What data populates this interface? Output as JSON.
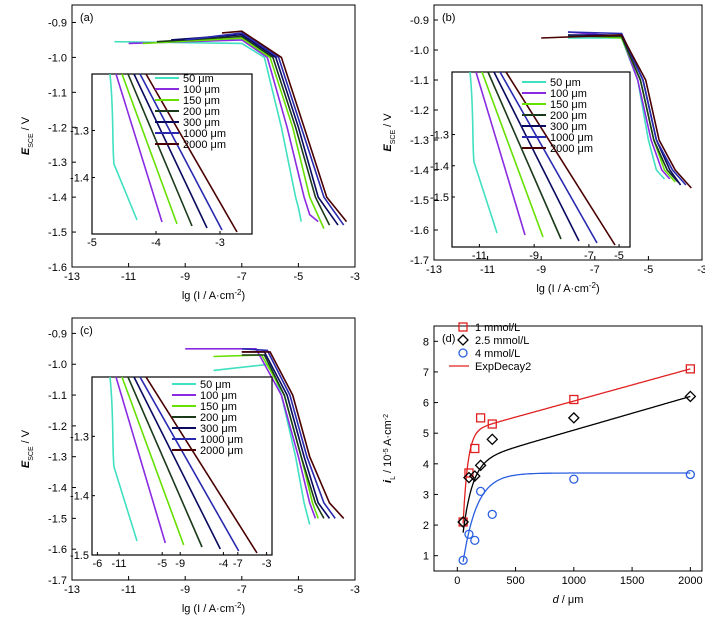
{
  "colors": {
    "50": "#40e0c0",
    "100": "#8a2be2",
    "150": "#66e000",
    "200": "#1a3a1a",
    "300": "#0a0a60",
    "1000": "#2a2ab0",
    "2000": "#4a0000",
    "red": "#e02020",
    "black": "#000000",
    "blue": "#2a5fe0"
  },
  "chart_data": [
    {
      "type": "line",
      "panel": "(a)",
      "xlabel_main": "lg",
      "xlabel_rest": " (I / A·cm",
      "xlabel_sup": "-2",
      "xlabel_end": ")",
      "ylabel_main": "E",
      "ylabel_sub": "SCE",
      "ylabel_rest": " / V",
      "xlim": [
        -13,
        -3
      ],
      "ylim": [
        -1.6,
        -0.85
      ],
      "xticks": [
        "-13",
        "-11",
        "-9",
        "-7",
        "-5",
        "-3"
      ],
      "yticks": [
        "-0.9",
        "-1.0",
        "-1.1",
        "-1.2",
        "-1.3",
        "-1.4",
        "-1.5",
        "-1.6"
      ],
      "inset": {
        "xlim": [
          -5,
          -2.5
        ],
        "ylim": [
          -1.52,
          -1.18
        ],
        "xticks": [
          "-5",
          "-4",
          "-3"
        ],
        "yticks": [
          "-1.3",
          "-1.4"
        ],
        "legend": [
          "50 μm",
          "100 μm",
          "150 μm",
          "200 μm",
          "300 μm",
          "1000 μm",
          "2000 μm"
        ]
      },
      "series": [
        {
          "name": "50 μm",
          "points": [
            [
              -11.5,
              -0.955
            ],
            [
              -7.0,
              -0.96
            ],
            [
              -6.2,
              -1.0
            ],
            [
              -5.6,
              -1.2
            ],
            [
              -5.1,
              -1.4
            ],
            [
              -5.0,
              -1.43
            ],
            [
              -4.9,
              -1.47
            ]
          ]
        },
        {
          "name": "100 μm",
          "points": [
            [
              -11.0,
              -0.96
            ],
            [
              -7.0,
              -0.95
            ],
            [
              -6.1,
              -1.0
            ],
            [
              -5.4,
              -1.2
            ],
            [
              -4.8,
              -1.4
            ],
            [
              -4.6,
              -1.45
            ],
            [
              -4.3,
              -1.47
            ]
          ]
        },
        {
          "name": "150 μm",
          "points": [
            [
              -10.5,
              -0.96
            ],
            [
              -7.0,
              -0.945
            ],
            [
              -6.0,
              -1.0
            ],
            [
              -5.2,
              -1.2
            ],
            [
              -4.6,
              -1.4
            ],
            [
              -4.1,
              -1.49
            ]
          ]
        },
        {
          "name": "200 μm",
          "points": [
            [
              -10.0,
              -0.955
            ],
            [
              -7.0,
              -0.94
            ],
            [
              -5.9,
              -1.0
            ],
            [
              -5.1,
              -1.2
            ],
            [
              -4.4,
              -1.4
            ],
            [
              -3.9,
              -1.48
            ]
          ]
        },
        {
          "name": "300 μm",
          "points": [
            [
              -9.5,
              -0.95
            ],
            [
              -7.0,
              -0.935
            ],
            [
              -5.8,
              -1.0
            ],
            [
              -5.0,
              -1.2
            ],
            [
              -4.3,
              -1.4
            ],
            [
              -3.6,
              -1.48
            ]
          ]
        },
        {
          "name": "1000 μm",
          "points": [
            [
              -9.0,
              -0.95
            ],
            [
              -7.0,
              -0.93
            ],
            [
              -5.7,
              -1.0
            ],
            [
              -4.9,
              -1.2
            ],
            [
              -4.1,
              -1.4
            ],
            [
              -3.4,
              -1.48
            ]
          ]
        },
        {
          "name": "2000 μm",
          "points": [
            [
              -7.7,
              -0.93
            ],
            [
              -7.0,
              -0.925
            ],
            [
              -5.6,
              -1.0
            ],
            [
              -4.8,
              -1.2
            ],
            [
              -4.0,
              -1.4
            ],
            [
              -3.3,
              -1.47
            ]
          ]
        }
      ]
    },
    {
      "type": "line",
      "panel": "(b)",
      "xlabel_main": "lg",
      "xlabel_rest": " (I / A·cm",
      "xlabel_sup": "-2",
      "xlabel_end": ")",
      "ylabel_main": "E",
      "ylabel_sub": "SCE",
      "ylabel_rest": " / V",
      "xlim": [
        -13,
        -3
      ],
      "ylim": [
        -1.7,
        -0.85
      ],
      "xticks": [
        "-13",
        "-11",
        "-9",
        "-7",
        "-5",
        "-3"
      ],
      "yticks": [
        "-0.9",
        "-1.0",
        "-1.1",
        "-1.2",
        "-1.3",
        "-1.4",
        "-1.5",
        "-1.6",
        "-1.7"
      ],
      "inset": {
        "xlim": [
          -12,
          -5.5
        ],
        "ylim": [
          -1.66,
          -1.1
        ],
        "xticks": [
          "-5",
          "-11",
          "-9",
          "-7"
        ],
        "xtick_vals": [
          -5.9,
          -11,
          -9,
          -7
        ],
        "yticks": [
          "-1.3",
          "-1.4",
          "-1.5"
        ],
        "legend": [
          "50 μm",
          "100 μm",
          "150 μm",
          "200 μm",
          "300 μm",
          "1000 μm",
          "2000 μm"
        ]
      },
      "series": [
        {
          "name": "50 μm",
          "points": [
            [
              -8.0,
              -0.96
            ],
            [
              -6.0,
              -0.96
            ],
            [
              -5.4,
              -1.1
            ],
            [
              -5.0,
              -1.3
            ],
            [
              -4.7,
              -1.4
            ],
            [
              -4.4,
              -1.43
            ]
          ]
        },
        {
          "name": "100 μm",
          "points": [
            [
              -8.0,
              -0.94
            ],
            [
              -6.0,
              -0.955
            ],
            [
              -5.4,
              -1.1
            ],
            [
              -4.9,
              -1.3
            ],
            [
              -4.5,
              -1.4
            ],
            [
              -4.2,
              -1.43
            ]
          ]
        },
        {
          "name": "150 μm",
          "points": [
            [
              -8.0,
              -0.95
            ],
            [
              -6.0,
              -0.96
            ],
            [
              -5.3,
              -1.1
            ],
            [
              -4.8,
              -1.3
            ],
            [
              -4.4,
              -1.4
            ],
            [
              -4.0,
              -1.44
            ]
          ]
        },
        {
          "name": "200 μm",
          "points": [
            [
              -8.0,
              -0.955
            ],
            [
              -6.0,
              -0.955
            ],
            [
              -5.3,
              -1.1
            ],
            [
              -4.8,
              -1.3
            ],
            [
              -4.3,
              -1.4
            ],
            [
              -3.9,
              -1.44
            ]
          ]
        },
        {
          "name": "300 μm",
          "points": [
            [
              -8.0,
              -0.95
            ],
            [
              -6.0,
              -0.95
            ],
            [
              -5.2,
              -1.1
            ],
            [
              -4.7,
              -1.3
            ],
            [
              -4.2,
              -1.4
            ],
            [
              -3.8,
              -1.45
            ]
          ]
        },
        {
          "name": "1000 μm",
          "points": [
            [
              -8.0,
              -0.94
            ],
            [
              -6.0,
              -0.945
            ],
            [
              -5.2,
              -1.1
            ],
            [
              -4.7,
              -1.3
            ],
            [
              -4.1,
              -1.4
            ],
            [
              -3.6,
              -1.45
            ]
          ]
        },
        {
          "name": "2000 μm",
          "points": [
            [
              -9.0,
              -0.96
            ],
            [
              -6.0,
              -0.95
            ],
            [
              -5.1,
              -1.1
            ],
            [
              -4.6,
              -1.3
            ],
            [
              -4.0,
              -1.4
            ],
            [
              -3.4,
              -1.46
            ]
          ]
        }
      ]
    },
    {
      "type": "line",
      "panel": "(c)",
      "xlabel_main": "lg",
      "xlabel_rest": " (I / A·cm",
      "xlabel_sup": "-2",
      "xlabel_end": ")",
      "ylabel_main": "E",
      "ylabel_sub": "SCE",
      "ylabel_rest": " / V",
      "xlim": [
        -13,
        -3
      ],
      "ylim": [
        -1.7,
        -0.85
      ],
      "xticks": [
        "-13",
        "-11",
        "-9",
        "-7",
        "-5",
        "-3"
      ],
      "yticks": [
        "-0.9",
        "-1.0",
        "-1.1",
        "-1.2",
        "-1.3",
        "-1.4",
        "-1.5",
        "-1.6",
        "-1.7"
      ],
      "inset": {
        "xlim": [
          -12.5,
          -2.5
        ],
        "ylim": [
          -1.5,
          -1.2
        ],
        "xticks": [
          "-6",
          "-11",
          "-5",
          "-9",
          "-4",
          "-7",
          "-3"
        ],
        "xtick_vals": [
          -12.2,
          -11,
          -8.6,
          -7.6,
          -5.2,
          -4.4,
          -2.8
        ],
        "yticks": [
          "-1.3",
          "-1.4",
          "-1.5"
        ],
        "legend": [
          "50 μm",
          "100 μm",
          "150 μm",
          "200 μm",
          "300 μm",
          "1000 μm",
          "2000 μm"
        ]
      },
      "series": [
        {
          "name": "50 μm",
          "points": [
            [
              -8.0,
              -1.02
            ],
            [
              -6.0,
              -1.0
            ],
            [
              -5.6,
              -1.1
            ],
            [
              -5.1,
              -1.3
            ],
            [
              -4.8,
              -1.45
            ],
            [
              -4.6,
              -1.52
            ]
          ]
        },
        {
          "name": "100 μm",
          "points": [
            [
              -9.0,
              -0.95
            ],
            [
              -6.5,
              -0.95
            ],
            [
              -5.6,
              -1.1
            ],
            [
              -5.0,
              -1.3
            ],
            [
              -4.6,
              -1.45
            ],
            [
              -4.4,
              -1.5
            ]
          ]
        },
        {
          "name": "150 μm",
          "points": [
            [
              -8.0,
              -0.975
            ],
            [
              -6.3,
              -0.97
            ],
            [
              -5.5,
              -1.1
            ],
            [
              -4.9,
              -1.3
            ],
            [
              -4.5,
              -1.45
            ],
            [
              -4.3,
              -1.5
            ]
          ]
        },
        {
          "name": "200 μm",
          "points": [
            [
              -7.0,
              -0.97
            ],
            [
              -6.2,
              -0.97
            ],
            [
              -5.5,
              -1.1
            ],
            [
              -4.9,
              -1.3
            ],
            [
              -4.4,
              -1.45
            ],
            [
              -4.1,
              -1.5
            ]
          ]
        },
        {
          "name": "300 μm",
          "points": [
            [
              -7.0,
              -0.96
            ],
            [
              -6.2,
              -0.96
            ],
            [
              -5.4,
              -1.1
            ],
            [
              -4.8,
              -1.3
            ],
            [
              -4.3,
              -1.45
            ],
            [
              -3.9,
              -1.5
            ]
          ]
        },
        {
          "name": "1000 μm",
          "points": [
            [
              -7.0,
              -0.95
            ],
            [
              -6.1,
              -0.955
            ],
            [
              -5.3,
              -1.1
            ],
            [
              -4.7,
              -1.3
            ],
            [
              -4.1,
              -1.45
            ],
            [
              -3.7,
              -1.5
            ]
          ]
        },
        {
          "name": "2000 μm",
          "points": [
            [
              -7.0,
              -0.96
            ],
            [
              -6.0,
              -0.96
            ],
            [
              -5.2,
              -1.1
            ],
            [
              -4.6,
              -1.3
            ],
            [
              -3.9,
              -1.45
            ],
            [
              -3.4,
              -1.5
            ]
          ]
        }
      ]
    },
    {
      "type": "scatter",
      "panel": "(d)",
      "xlabel_main": "d",
      "xlabel_rest": " / μm",
      "ylabel_main": "i",
      "ylabel_sub": "L",
      "ylabel_rest": " / 10",
      "ylabel_sup": "-5",
      "ylabel_end": " A·cm",
      "ylabel_sup2": "-2",
      "xlim": [
        -200,
        2100
      ],
      "ylim": [
        0.5,
        8.5
      ],
      "xticks": [
        "0",
        "500",
        "1000",
        "1500",
        "2000"
      ],
      "yticks": [
        "1",
        "2",
        "3",
        "4",
        "5",
        "6",
        "7",
        "8"
      ],
      "legend": [
        "1 mmol/L",
        "2.5 mmol/L",
        "4 mmol/L",
        "ExpDecay2"
      ],
      "series": [
        {
          "name": "1 mmol/L",
          "marker": "square",
          "x": [
            50,
            100,
            150,
            200,
            300,
            1000,
            2000
          ],
          "y": [
            2.1,
            3.7,
            4.5,
            5.5,
            5.3,
            6.1,
            7.1
          ]
        },
        {
          "name": "2.5 mmol/L",
          "marker": "diamond",
          "x": [
            50,
            100,
            150,
            200,
            300,
            1000,
            2000
          ],
          "y": [
            2.1,
            3.55,
            3.6,
            3.95,
            4.8,
            5.5,
            6.2
          ]
        },
        {
          "name": "4 mmol/L",
          "marker": "circle",
          "x": [
            50,
            100,
            150,
            200,
            300,
            1000,
            2000
          ],
          "y": [
            0.85,
            1.7,
            1.5,
            3.1,
            2.35,
            3.5,
            3.65
          ]
        }
      ],
      "fits": [
        {
          "name": "ExpDecay2",
          "y0": 5.0,
          "a": 3.0,
          "t": 40,
          "k": 0.00105,
          "color": "red"
        },
        {
          "name": "",
          "y0": 4.0,
          "a": 2.3,
          "t": 80,
          "k": 0.0011,
          "color": "black"
        },
        {
          "name": "",
          "y0": 3.7,
          "a": 2.9,
          "t": 120,
          "k": 0,
          "color": "blue"
        }
      ]
    }
  ]
}
